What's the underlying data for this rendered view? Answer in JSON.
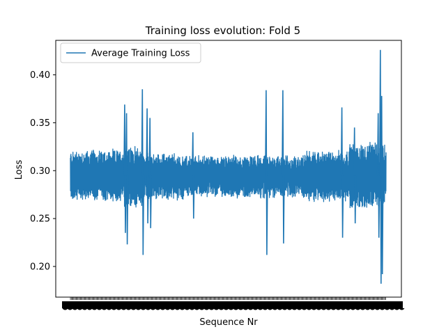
{
  "chart_data": {
    "type": "line",
    "title": "Training loss evolution: Fold 5",
    "xlabel": "Sequence Nr",
    "ylabel": "Loss",
    "ylim": [
      0.168,
      0.436
    ],
    "yticks": [
      0.2,
      0.25,
      0.3,
      0.35,
      0.4
    ],
    "ytick_labels": [
      "0.20",
      "0.25",
      "0.30",
      "0.35",
      "0.40"
    ],
    "x_tick_labels_note": "dense overlapping sequence-number tick labels (illegible)",
    "grid": false,
    "legend": {
      "position": "top-left",
      "entries": [
        "Average Training Loss"
      ]
    },
    "series": [
      {
        "name": "Average Training Loss",
        "color": "#1f77b4",
        "segments": [
          {
            "x_frac": [
              0.0,
              0.17
            ],
            "mean": 0.295,
            "amp": 0.025
          },
          {
            "x_frac": [
              0.17,
              0.23
            ],
            "mean": 0.293,
            "amp": 0.03
          },
          {
            "x_frac": [
              0.23,
              0.36
            ],
            "mean": 0.294,
            "amp": 0.022
          },
          {
            "x_frac": [
              0.36,
              0.74
            ],
            "mean": 0.294,
            "amp": 0.02
          },
          {
            "x_frac": [
              0.74,
              0.88
            ],
            "mean": 0.294,
            "amp": 0.025
          },
          {
            "x_frac": [
              0.88,
              1.0
            ],
            "mean": 0.295,
            "amp": 0.032
          }
        ],
        "spikes": [
          {
            "x_frac": 0.172,
            "max": 0.369,
            "min": 0.235
          },
          {
            "x_frac": 0.178,
            "max": 0.36,
            "min": 0.223
          },
          {
            "x_frac": 0.228,
            "max": 0.385,
            "min": 0.212
          },
          {
            "x_frac": 0.243,
            "max": 0.365,
            "min": 0.245
          },
          {
            "x_frac": 0.252,
            "max": 0.355,
            "min": 0.24
          },
          {
            "x_frac": 0.388,
            "max": 0.34,
            "min": 0.25
          },
          {
            "x_frac": 0.62,
            "max": 0.384,
            "min": 0.212
          },
          {
            "x_frac": 0.673,
            "max": 0.384,
            "min": 0.224
          },
          {
            "x_frac": 0.86,
            "max": 0.366,
            "min": 0.23
          },
          {
            "x_frac": 0.9,
            "max": 0.345,
            "min": 0.245
          },
          {
            "x_frac": 0.975,
            "max": 0.36,
            "min": 0.23
          },
          {
            "x_frac": 0.982,
            "max": 0.426,
            "min": 0.182
          },
          {
            "x_frac": 0.986,
            "max": 0.378,
            "min": 0.192
          }
        ]
      }
    ]
  }
}
